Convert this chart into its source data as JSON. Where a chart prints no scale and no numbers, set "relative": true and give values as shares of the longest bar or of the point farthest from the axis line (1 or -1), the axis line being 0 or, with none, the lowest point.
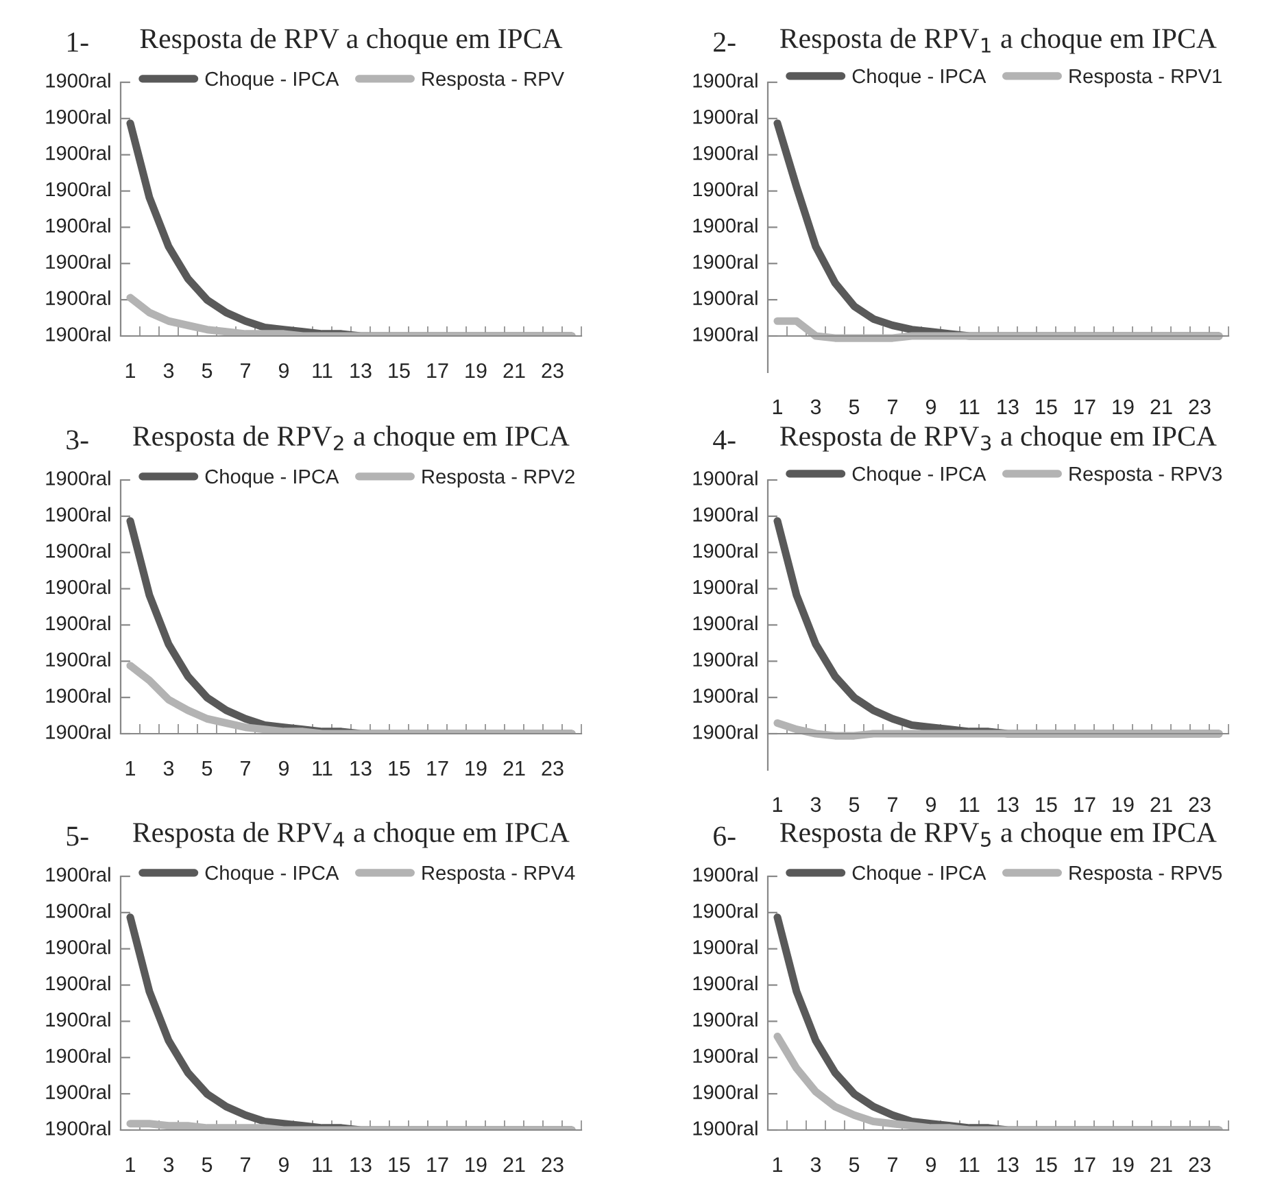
{
  "chart_data": [
    {
      "type": "line",
      "title": "Resposta de RPV a choque em IPCA",
      "annotations": [
        "1-",
        "1900ral",
        "1900ral",
        "1900ral",
        "1900ral",
        "1900ral",
        "1900ral",
        "1900ral",
        "1900ral"
      ],
      "categories": [
        "1",
        null,
        "3",
        null,
        "5",
        null,
        "7",
        null,
        "9",
        null,
        "11",
        null,
        "13",
        null,
        "15",
        null,
        "17",
        null,
        "19",
        null,
        "21",
        null,
        "23",
        null
      ],
      "relative": true,
      "legend": "top",
      "line_style": "solid",
      "series": [
        {
          "name": "Choque - IPCA",
          "color": "#595959",
          "values": [
            1,
            0.65,
            0.42,
            0.27,
            0.17,
            0.11,
            0.07,
            0.04,
            0.03,
            0.02,
            0.01,
            0.01,
            0,
            0,
            0,
            0,
            0,
            0,
            0,
            0,
            0,
            0,
            0,
            0
          ]
        },
        {
          "name": "Resposta - RPV",
          "color": "#b3b3b3",
          "values": [
            0.18,
            0.11,
            0.07,
            0.05,
            0.03,
            0.02,
            0.01,
            0.01,
            0.01,
            0,
            0,
            0,
            0,
            0,
            0,
            0,
            0,
            0,
            0,
            0,
            0,
            0,
            0,
            0
          ]
        }
      ]
    },
    {
      "type": "line",
      "title": "Resposta de RPV$_{1}$ a choque em IPCA",
      "annotations": [
        "2-",
        "1900ral",
        "1900ral",
        "1900ral",
        "1900ral",
        "1900ral",
        "1900ral",
        "1900ral",
        "1900ral"
      ],
      "categories": [
        "1",
        null,
        "3",
        null,
        "5",
        null,
        "7",
        null,
        "9",
        null,
        "11",
        null,
        "13",
        null,
        "15",
        null,
        "17",
        null,
        "19",
        null,
        "21",
        null,
        "23",
        null
      ],
      "relative": true,
      "legend": "top",
      "line_style": "solid",
      "series": [
        {
          "name": "Choque - IPCA",
          "color": "#595959",
          "values": [
            1,
            0.7,
            0.42,
            0.25,
            0.14,
            0.08,
            0.05,
            0.03,
            0.02,
            0.01,
            0,
            0,
            0,
            0,
            0,
            0,
            0,
            0,
            0,
            0,
            0,
            0,
            0,
            0
          ]
        },
        {
          "name": "Resposta - RPV1",
          "color": "#b3b3b3",
          "values": [
            0.07,
            0.07,
            0,
            -0.01,
            -0.01,
            -0.01,
            -0.01,
            0,
            0,
            0,
            0,
            0,
            0,
            0,
            0,
            0,
            0,
            0,
            0,
            0,
            0,
            0,
            0,
            0
          ]
        }
      ]
    },
    {
      "type": "line",
      "title": "Resposta de RPV$_{2}$ a choque em IPCA",
      "annotations": [
        "3-",
        "1900ral",
        "1900ral",
        "1900ral",
        "1900ral",
        "1900ral",
        "1900ral",
        "1900ral",
        "1900ral"
      ],
      "categories": [
        "1",
        null,
        "3",
        null,
        "5",
        null,
        "7",
        null,
        "9",
        null,
        "11",
        null,
        "13",
        null,
        "15",
        null,
        "17",
        null,
        "19",
        null,
        "21",
        null,
        "23",
        null
      ],
      "relative": true,
      "legend": "top",
      "line_style": "solid",
      "series": [
        {
          "name": "Choque - IPCA",
          "color": "#595959",
          "values": [
            1,
            0.65,
            0.42,
            0.27,
            0.17,
            0.11,
            0.07,
            0.04,
            0.03,
            0.02,
            0.01,
            0.01,
            0,
            0,
            0,
            0,
            0,
            0,
            0,
            0,
            0,
            0,
            0,
            0
          ]
        },
        {
          "name": "Resposta - RPV2",
          "color": "#b3b3b3",
          "values": [
            0.32,
            0.25,
            0.16,
            0.11,
            0.07,
            0.05,
            0.03,
            0.02,
            0.01,
            0.01,
            0,
            0,
            0,
            0,
            0,
            0,
            0,
            0,
            0,
            0,
            0,
            0,
            0,
            0
          ]
        }
      ]
    },
    {
      "type": "line",
      "title": "Resposta de RPV$_{3}$ a choque em IPCA",
      "annotations": [
        "4-",
        "1900ral",
        "1900ral",
        "1900ral",
        "1900ral",
        "1900ral",
        "1900ral",
        "1900ral",
        "1900ral"
      ],
      "categories": [
        "1",
        null,
        "3",
        null,
        "5",
        null,
        "7",
        null,
        "9",
        null,
        "11",
        null,
        "13",
        null,
        "15",
        null,
        "17",
        null,
        "19",
        null,
        "21",
        null,
        "23",
        null
      ],
      "relative": true,
      "legend": "top",
      "line_style": "solid",
      "series": [
        {
          "name": "Choque - IPCA",
          "color": "#595959",
          "values": [
            1,
            0.65,
            0.42,
            0.27,
            0.17,
            0.11,
            0.07,
            0.04,
            0.03,
            0.02,
            0.01,
            0.01,
            0,
            0,
            0,
            0,
            0,
            0,
            0,
            0,
            0,
            0,
            0,
            0
          ]
        },
        {
          "name": "Resposta - RPV3",
          "color": "#b3b3b3",
          "values": [
            0.05,
            0.02,
            0,
            -0.01,
            -0.01,
            0,
            0,
            0,
            0,
            0,
            0,
            0,
            0,
            0,
            0,
            0,
            0,
            0,
            0,
            0,
            0,
            0,
            0,
            0
          ]
        }
      ]
    },
    {
      "type": "line",
      "title": "Resposta de RPV$_{4}$ a choque em IPCA",
      "annotations": [
        "5-",
        "1900ral",
        "1900ral",
        "1900ral",
        "1900ral",
        "1900ral",
        "1900ral",
        "1900ral",
        "1900ral"
      ],
      "categories": [
        "1",
        null,
        "3",
        null,
        "5",
        null,
        "7",
        null,
        "9",
        null,
        "11",
        null,
        "13",
        null,
        "15",
        null,
        "17",
        null,
        "19",
        null,
        "21",
        null,
        "23",
        null
      ],
      "relative": true,
      "legend": "top",
      "line_style": "solid",
      "series": [
        {
          "name": "Choque - IPCA",
          "color": "#595959",
          "values": [
            1,
            0.65,
            0.42,
            0.27,
            0.17,
            0.11,
            0.07,
            0.04,
            0.03,
            0.02,
            0.01,
            0.01,
            0,
            0,
            0,
            0,
            0,
            0,
            0,
            0,
            0,
            0,
            0,
            0
          ]
        },
        {
          "name": "Resposta - RPV4",
          "color": "#b3b3b3",
          "values": [
            0.03,
            0.03,
            0.02,
            0.02,
            0.01,
            0.01,
            0.01,
            0.01,
            0,
            0,
            0,
            0,
            0,
            0,
            0,
            0,
            0,
            0,
            0,
            0,
            0,
            0,
            0,
            0
          ]
        }
      ]
    },
    {
      "type": "line",
      "title": "Resposta de RPV$_{5}$ a choque em IPCA",
      "annotations": [
        "6-",
        "1900ral",
        "1900ral",
        "1900ral",
        "1900ral",
        "1900ral",
        "1900ral",
        "1900ral",
        "1900ral"
      ],
      "categories": [
        "1",
        null,
        "3",
        null,
        "5",
        null,
        "7",
        null,
        "9",
        null,
        "11",
        null,
        "13",
        null,
        "15",
        null,
        "17",
        null,
        "19",
        null,
        "21",
        null,
        "23",
        null
      ],
      "relative": true,
      "legend": "top",
      "line_style": "solid",
      "series": [
        {
          "name": "Choque - IPCA",
          "color": "#595959",
          "values": [
            1,
            0.65,
            0.42,
            0.27,
            0.17,
            0.11,
            0.07,
            0.04,
            0.03,
            0.02,
            0.01,
            0.01,
            0,
            0,
            0,
            0,
            0,
            0,
            0,
            0,
            0,
            0,
            0,
            0
          ]
        },
        {
          "name": "Resposta - RPV5",
          "color": "#b3b3b3",
          "values": [
            0.44,
            0.29,
            0.18,
            0.11,
            0.07,
            0.04,
            0.03,
            0.02,
            0.01,
            0.01,
            0,
            0,
            0,
            0,
            0,
            0,
            0,
            0,
            0,
            0,
            0,
            0,
            0,
            0
          ]
        }
      ]
    }
  ]
}
